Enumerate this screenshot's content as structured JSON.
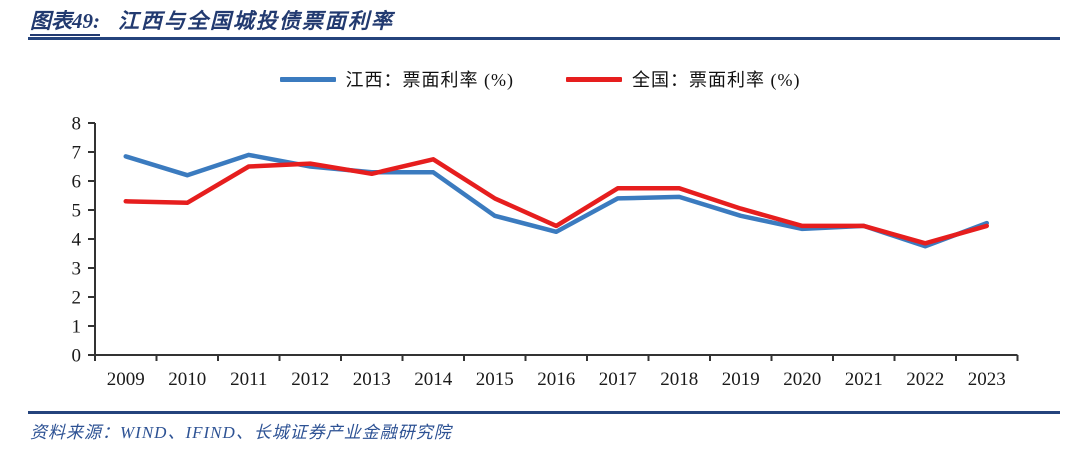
{
  "header": {
    "label": "图表49:",
    "title": "江西与全国城投债票面利率"
  },
  "chart_data": {
    "type": "line",
    "title": "江西与全国城投债票面利率",
    "x": [
      "2009",
      "2010",
      "2011",
      "2012",
      "2013",
      "2014",
      "2015",
      "2016",
      "2017",
      "2018",
      "2019",
      "2020",
      "2021",
      "2022",
      "2023"
    ],
    "series": [
      {
        "name": "江西：票面利率 (%)",
        "color": "#3b7bbf",
        "values": [
          6.85,
          6.2,
          6.9,
          6.5,
          6.3,
          6.3,
          4.8,
          4.25,
          5.4,
          5.45,
          4.8,
          4.35,
          4.45,
          3.75,
          4.55
        ]
      },
      {
        "name": "全国：票面利率 (%)",
        "color": "#e61e1e",
        "values": [
          5.3,
          5.25,
          6.5,
          6.6,
          6.25,
          6.75,
          5.4,
          4.45,
          5.75,
          5.75,
          5.05,
          4.45,
          4.45,
          3.85,
          4.45
        ]
      }
    ],
    "xlabel": "",
    "ylabel": "",
    "ylim": [
      0,
      8
    ],
    "ytick_step": 1,
    "grid": false,
    "legend_position": "top",
    "axis_color": "#333333",
    "tick_label_color": "#1a1a1a"
  },
  "footer": {
    "source": "资料来源：WIND、IFIND、长城证券产业金融研究院"
  }
}
